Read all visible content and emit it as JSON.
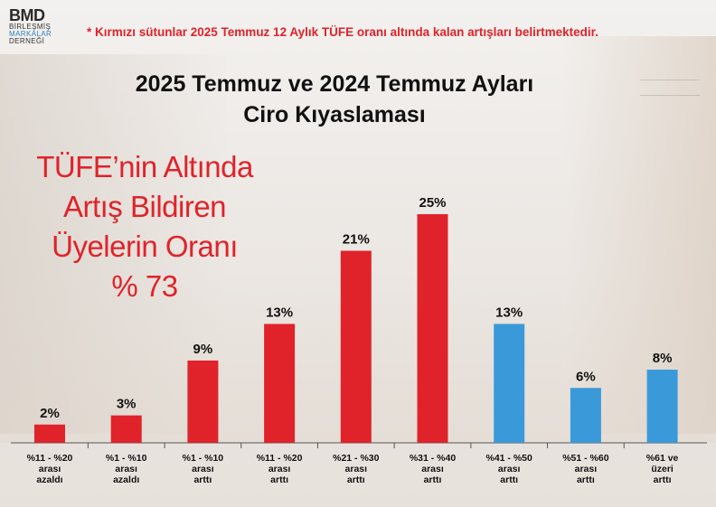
{
  "logo": {
    "main": "BMD",
    "line1": "BİRLEŞMİŞ",
    "line2": "MARKALAR",
    "line3": "DERNEĞİ"
  },
  "footnote": "*  Kırmızı sütunlar 2025 Temmuz 12 Aylık TÜFE oranı altında kalan artışları belirtmektedir.",
  "callout": {
    "line1": "TÜFE’nin Altında",
    "line2": "Artış Bildiren",
    "line3": "Üyelerin Oranı",
    "line4": "% 73"
  },
  "colors": {
    "red": "#e0232a",
    "blue": "#3a9ad9"
  },
  "chart_data": {
    "type": "bar",
    "title": "2025 Temmuz ve 2024 Temmuz Ayları Ciro Kıyaslaması",
    "title_lines": [
      "2025 Temmuz ve 2024 Temmuz Ayları",
      "Ciro Kıyaslaması"
    ],
    "categories": [
      [
        "%11 - %20",
        "arası",
        "azaldı"
      ],
      [
        "%1 - %10",
        "arası",
        "azaldı"
      ],
      [
        "%1 - %10",
        "arası",
        "arttı"
      ],
      [
        "%11 - %20",
        "arası",
        "arttı"
      ],
      [
        "%21 - %30",
        "arası",
        "arttı"
      ],
      [
        "%31 - %40",
        "arası",
        "arttı"
      ],
      [
        "%41 - %50",
        "arası",
        "arttı"
      ],
      [
        "%51 - %60",
        "arası",
        "arttı"
      ],
      [
        "%61 ve",
        "üzeri",
        "arttı"
      ]
    ],
    "values": [
      2,
      3,
      9,
      13,
      21,
      25,
      13,
      6,
      8
    ],
    "labels": [
      "2%",
      "3%",
      "9%",
      "13%",
      "21%",
      "25%",
      "13%",
      "6%",
      "8%"
    ],
    "bar_colors": [
      "red",
      "red",
      "red",
      "red",
      "red",
      "red",
      "blue",
      "blue",
      "blue"
    ],
    "ylim": [
      0,
      25
    ],
    "grid": false,
    "legend": "none"
  }
}
